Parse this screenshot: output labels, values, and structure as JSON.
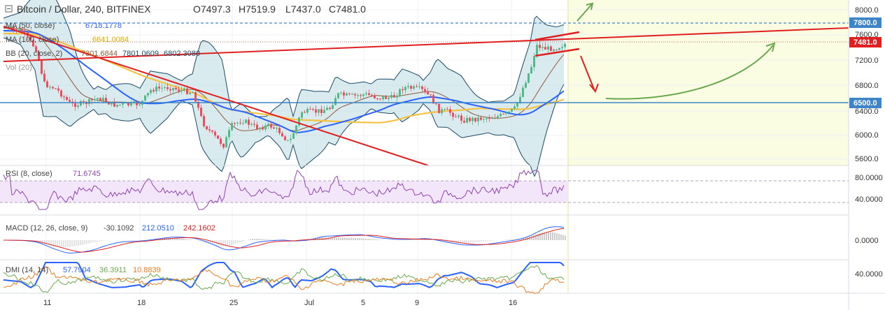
{
  "header": {
    "symbol": "Bitcoin / Dollar, 240, BITFINEX",
    "open": "O7497.3",
    "high": "H7519.9",
    "low": "L7437.0",
    "close": "C7481.0"
  },
  "indicators": {
    "ma50": {
      "label": "MA (50, close)",
      "value": "6718.1778",
      "color": "#2962ff"
    },
    "ma100": {
      "label": "MA (100, close)",
      "value": "6641.0084",
      "color": "#f5c242"
    },
    "bb": {
      "label": "BB (20, close, 2)",
      "basis": "7301.6844",
      "upper": "7801.0609",
      "lower": "6802.3080",
      "color": "#8d5a3b"
    },
    "vol": {
      "label": "Vol (20)"
    }
  },
  "price_axis": {
    "ticks": [
      "8000.0",
      "7600.0",
      "7200.0",
      "6800.0",
      "6400.0",
      "6000.0",
      "5600.0"
    ],
    "tag_top": "7800.0",
    "tag_current": "7481.0",
    "tag_support": "6500.0"
  },
  "rsi": {
    "label": "RSI (8, close)",
    "value": "71.6745",
    "ticks": [
      "80.0000",
      "40.0000"
    ]
  },
  "macd": {
    "label": "MACD (12, 26, close, 9)",
    "v1": "-30.1092",
    "v2": "212.0510",
    "v3": "242.1602",
    "ticks": [
      "0.0000"
    ]
  },
  "dmi": {
    "label": "DMI (14, 14)",
    "v1": "57.7904",
    "v2": "36.3911",
    "v3": "10.8839",
    "ticks": [
      "40.0000"
    ]
  },
  "time_axis": [
    "11",
    "18",
    "25",
    "Jul",
    "5",
    "9",
    "16"
  ],
  "colors": {
    "up": "#53b987",
    "down": "#eb4d5c",
    "ma50": "#2962ff",
    "ma100": "#f5c242",
    "trend": "#e02020",
    "arrow_green": "#6aa84f",
    "hline": "#3d85c6",
    "rsi_band": "#f3e6fb",
    "forecast_bg": "#fbfde3"
  }
}
